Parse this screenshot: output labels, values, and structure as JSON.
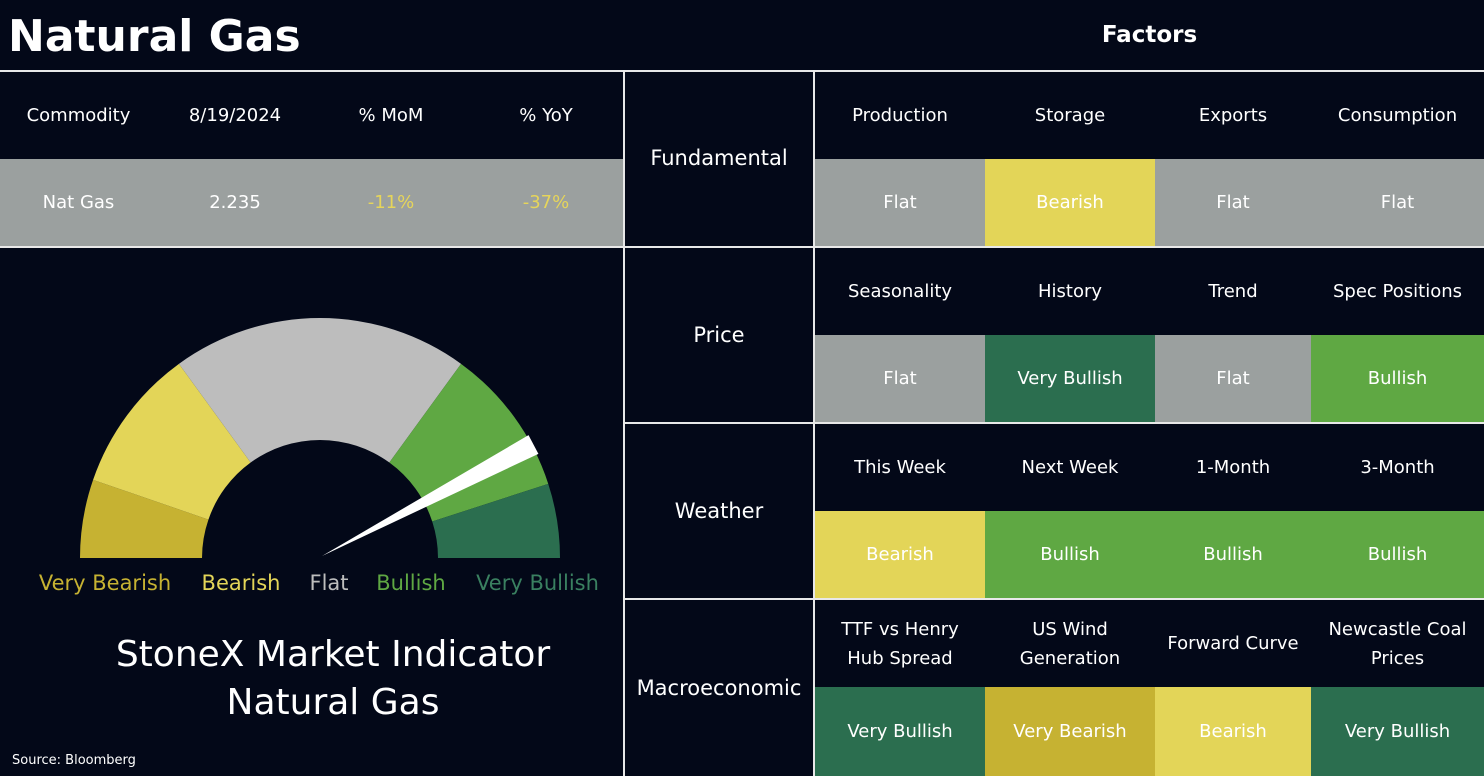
{
  "header": {
    "title": "Natural Gas",
    "factors_title": "Factors"
  },
  "commodity_table": {
    "columns": [
      "Commodity",
      "8/19/2024",
      "% MoM",
      "% YoY"
    ],
    "row": [
      "Nat Gas",
      "2.235",
      "-11%",
      "-37%"
    ]
  },
  "gauge": {
    "labels": [
      {
        "text": "Very Bearish",
        "color": "#c6b232"
      },
      {
        "text": "Bearish",
        "color": "#e3d558"
      },
      {
        "text": "Flat",
        "color": "#bdbdbd"
      },
      {
        "text": "Bullish",
        "color": "#5fa843"
      },
      {
        "text": "Very Bullish",
        "color": "#3a8060"
      }
    ],
    "caption": [
      "StoneX Market Indicator",
      "Natural Gas"
    ]
  },
  "source": "Source: Bloomberg",
  "factors": [
    {
      "category": "Fundamental",
      "items": [
        {
          "name": "Production",
          "signal": "Flat",
          "color": "#9ba09f"
        },
        {
          "name": "Storage",
          "signal": "Bearish",
          "color": "#e3d558"
        },
        {
          "name": "Exports",
          "signal": "Flat",
          "color": "#9ba09f"
        },
        {
          "name": "Consumption",
          "signal": "Flat",
          "color": "#9ba09f"
        }
      ]
    },
    {
      "category": "Price",
      "items": [
        {
          "name": "Seasonality",
          "signal": "Flat",
          "color": "#9ba09f"
        },
        {
          "name": "History",
          "signal": "Very Bullish",
          "color": "#2b6e4f"
        },
        {
          "name": "Trend",
          "signal": "Flat",
          "color": "#9ba09f"
        },
        {
          "name": "Spec Positions",
          "signal": "Bullish",
          "color": "#5fa843"
        }
      ]
    },
    {
      "category": "Weather",
      "items": [
        {
          "name": "This Week",
          "signal": "Bearish",
          "color": "#e3d558"
        },
        {
          "name": "Next Week",
          "signal": "Bullish",
          "color": "#5fa843"
        },
        {
          "name": "1-Month",
          "signal": "Bullish",
          "color": "#5fa843"
        },
        {
          "name": "3-Month",
          "signal": "Bullish",
          "color": "#5fa843"
        }
      ]
    },
    {
      "category": "Macroeconomic",
      "items": [
        {
          "name": "TTF vs Henry Hub Spread",
          "signal": "Very Bullish",
          "color": "#2b6e4f"
        },
        {
          "name": "US Wind Generation",
          "signal": "Very Bearish",
          "color": "#c6b232"
        },
        {
          "name": "Forward Curve",
          "signal": "Bearish",
          "color": "#e3d558"
        },
        {
          "name": "Newcastle Coal Prices",
          "signal": "Very Bullish",
          "color": "#2b6e4f"
        }
      ]
    }
  ]
}
